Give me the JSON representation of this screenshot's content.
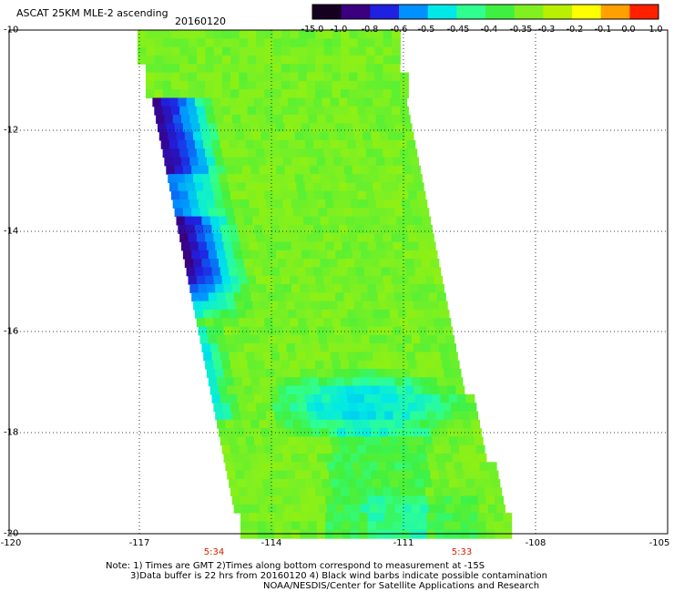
{
  "header": {
    "title": "ASCAT 25KM MLE-2 ascending",
    "date": "20160120"
  },
  "colorbar": {
    "labels": [
      "-15.0",
      "-1.0",
      "-0.8",
      "-0.6",
      "-0.5",
      "-0.45",
      "-0.4",
      "-0.35",
      "-0.3",
      "-0.2",
      "-0.1",
      "0.0",
      "1.0"
    ],
    "colors": [
      "#150020",
      "#3a0080",
      "#2020e0",
      "#0090ff",
      "#00e8e8",
      "#30ff90",
      "#40f040",
      "#80f020",
      "#b8f000",
      "#ffff00",
      "#ffa000",
      "#ff2000"
    ]
  },
  "axes": {
    "y_labels": [
      "-10",
      "-12",
      "-14",
      "-16",
      "-18",
      "-20"
    ],
    "x_labels": [
      "-120",
      "-117",
      "-114",
      "-111",
      "-108",
      "-105"
    ]
  },
  "times": [
    "5:34",
    "5:33"
  ],
  "notes": {
    "line1": "Note: 1) Times are GMT 2)Times along bottom correspond to measurement at -15S",
    "line2": "3)Data buffer is 22 hrs from 20160120 4) Black wind barbs indicate possible contamination",
    "line3": "NOAA/NESDIS/Center for Satellite Applications and Research"
  }
}
